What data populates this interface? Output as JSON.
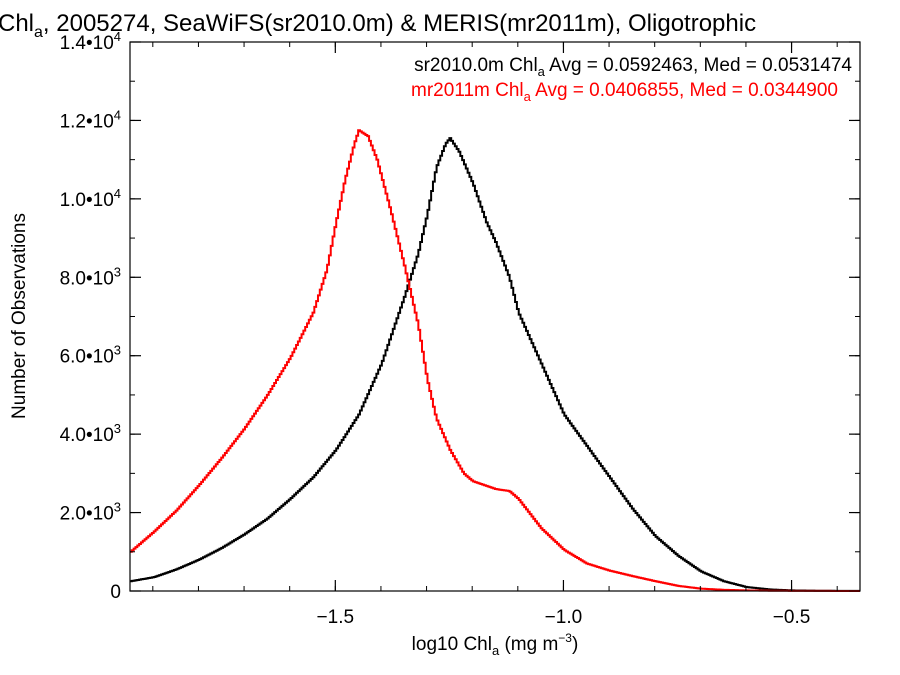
{
  "chart_data": {
    "type": "line",
    "title": {
      "prefix": "Chl",
      "sub": "a",
      "rest": ", 2005274, SeaWiFS(sr2010.0m) & MERIS(mr2011m), Oligotrophic"
    },
    "xlabel": {
      "prefix": "log10 Chl",
      "sub": "a",
      "mid": " (mg m",
      "sup": "−3",
      "end": ")"
    },
    "ylabel": "Number of Observations",
    "xlim": [
      -1.95,
      -0.35
    ],
    "ylim": [
      0,
      14000
    ],
    "x_ticks": [
      {
        "value": -1.5,
        "label": "−1.5"
      },
      {
        "value": -1.0,
        "label": "−1.0"
      },
      {
        "value": -0.5,
        "label": "−0.5"
      }
    ],
    "y_ticks": [
      {
        "value": 0,
        "mant": "0",
        "exp": ""
      },
      {
        "value": 2000,
        "mant": "2.0•10",
        "exp": "3"
      },
      {
        "value": 4000,
        "mant": "4.0•10",
        "exp": "3"
      },
      {
        "value": 6000,
        "mant": "6.0•10",
        "exp": "3"
      },
      {
        "value": 8000,
        "mant": "8.0•10",
        "exp": "3"
      },
      {
        "value": 10000,
        "mant": "1.0•10",
        "exp": "4"
      },
      {
        "value": 12000,
        "mant": "1.2•10",
        "exp": "4"
      },
      {
        "value": 14000,
        "mant": "1.4•10",
        "exp": "4"
      }
    ],
    "x_minor_step": 0.1,
    "y_minor_step": 1000,
    "grid": false,
    "legend_position": "top-right",
    "step": true,
    "series": [
      {
        "name": "sr2010.0m",
        "legend": {
          "prefix": "sr2010.0m Chl",
          "sub": "a",
          "rest": " Avg = 0.0592463, Med = 0.0531474"
        },
        "color": "#000000",
        "points": [
          [
            -1.95,
            250
          ],
          [
            -1.9,
            350
          ],
          [
            -1.85,
            550
          ],
          [
            -1.8,
            800
          ],
          [
            -1.75,
            1100
          ],
          [
            -1.7,
            1450
          ],
          [
            -1.65,
            1850
          ],
          [
            -1.6,
            2350
          ],
          [
            -1.55,
            2900
          ],
          [
            -1.5,
            3600
          ],
          [
            -1.45,
            4500
          ],
          [
            -1.4,
            5800
          ],
          [
            -1.35,
            7500
          ],
          [
            -1.32,
            8600
          ],
          [
            -1.3,
            9600
          ],
          [
            -1.28,
            10800
          ],
          [
            -1.26,
            11400
          ],
          [
            -1.25,
            11550
          ],
          [
            -1.23,
            11200
          ],
          [
            -1.2,
            10400
          ],
          [
            -1.17,
            9400
          ],
          [
            -1.15,
            8900
          ],
          [
            -1.12,
            8000
          ],
          [
            -1.1,
            7100
          ],
          [
            -1.05,
            5800
          ],
          [
            -1.0,
            4500
          ],
          [
            -0.95,
            3700
          ],
          [
            -0.9,
            2900
          ],
          [
            -0.85,
            2100
          ],
          [
            -0.8,
            1400
          ],
          [
            -0.75,
            900
          ],
          [
            -0.7,
            500
          ],
          [
            -0.65,
            250
          ],
          [
            -0.6,
            100
          ],
          [
            -0.55,
            40
          ],
          [
            -0.5,
            15
          ],
          [
            -0.45,
            8
          ],
          [
            -0.4,
            4
          ],
          [
            -0.35,
            3
          ]
        ]
      },
      {
        "name": "mr2011m",
        "legend": {
          "prefix": "mr2011m Chl",
          "sub": "a",
          "rest": " Avg = 0.0406855, Med = 0.0344900"
        },
        "color": "#ff0000",
        "points": [
          [
            -1.95,
            1000
          ],
          [
            -1.9,
            1500
          ],
          [
            -1.85,
            2050
          ],
          [
            -1.8,
            2700
          ],
          [
            -1.75,
            3400
          ],
          [
            -1.7,
            4150
          ],
          [
            -1.65,
            5000
          ],
          [
            -1.6,
            5950
          ],
          [
            -1.55,
            7100
          ],
          [
            -1.52,
            8200
          ],
          [
            -1.5,
            9400
          ],
          [
            -1.48,
            10500
          ],
          [
            -1.46,
            11400
          ],
          [
            -1.45,
            11750
          ],
          [
            -1.43,
            11600
          ],
          [
            -1.41,
            11000
          ],
          [
            -1.38,
            9700
          ],
          [
            -1.35,
            8300
          ],
          [
            -1.32,
            6800
          ],
          [
            -1.3,
            5400
          ],
          [
            -1.28,
            4400
          ],
          [
            -1.25,
            3600
          ],
          [
            -1.22,
            3000
          ],
          [
            -1.2,
            2800
          ],
          [
            -1.15,
            2600
          ],
          [
            -1.12,
            2550
          ],
          [
            -1.1,
            2350
          ],
          [
            -1.05,
            1600
          ],
          [
            -1.0,
            1050
          ],
          [
            -0.95,
            700
          ],
          [
            -0.9,
            520
          ],
          [
            -0.85,
            380
          ],
          [
            -0.8,
            250
          ],
          [
            -0.75,
            130
          ],
          [
            -0.7,
            60
          ],
          [
            -0.65,
            30
          ],
          [
            -0.6,
            15
          ],
          [
            -0.55,
            8
          ],
          [
            -0.5,
            4
          ],
          [
            -0.45,
            2
          ],
          [
            -0.35,
            1
          ]
        ]
      }
    ]
  }
}
